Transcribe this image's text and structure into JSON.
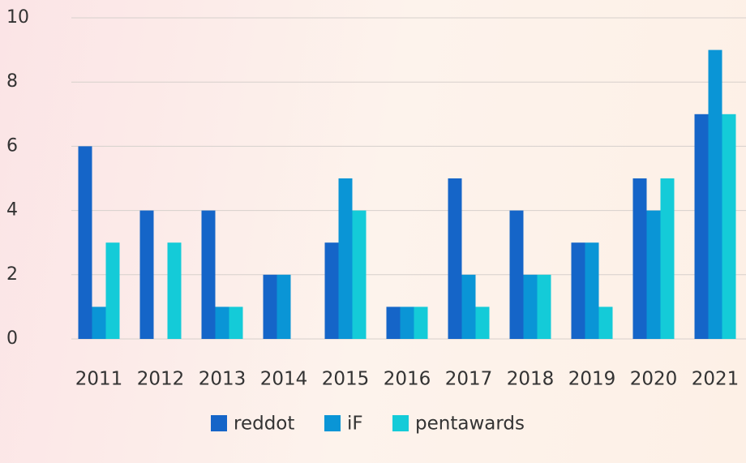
{
  "chart_data": {
    "type": "bar",
    "categories": [
      "2011",
      "2012",
      "2013",
      "2014",
      "2015",
      "2016",
      "2017",
      "2018",
      "2019",
      "2020",
      "2021"
    ],
    "series": [
      {
        "name": "reddot",
        "color": "#1565c8",
        "values": [
          6,
          4,
          4,
          2,
          3,
          1,
          5,
          4,
          3,
          5,
          7
        ]
      },
      {
        "name": "iF",
        "color": "#0a95d6",
        "values": [
          1,
          0,
          1,
          2,
          5,
          1,
          2,
          2,
          3,
          4,
          9
        ]
      },
      {
        "name": "pentawards",
        "color": "#14cbd8",
        "values": [
          3,
          3,
          1,
          0,
          4,
          1,
          1,
          2,
          1,
          5,
          7
        ]
      }
    ],
    "ylim": [
      0,
      10
    ],
    "yticks": [
      0,
      2,
      4,
      6,
      8,
      10
    ],
    "grid": true,
    "legend": "bottom"
  }
}
